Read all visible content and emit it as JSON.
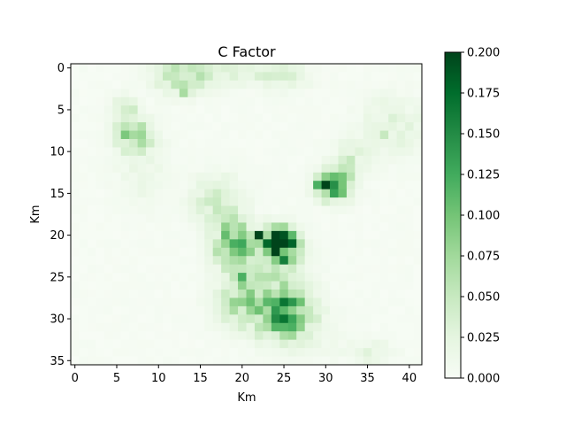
{
  "chart_data": {
    "type": "heatmap",
    "title": "C Factor",
    "xlabel": "Km",
    "ylabel": "Km",
    "grid_cols": 42,
    "grid_rows": 36,
    "xticks": [
      0,
      5,
      10,
      15,
      20,
      25,
      30,
      35,
      40
    ],
    "yticks": [
      0,
      5,
      10,
      15,
      20,
      25,
      30,
      35
    ],
    "xlim": [
      -0.5,
      41.5
    ],
    "ylim": [
      35.5,
      -0.5
    ],
    "colormap": "Greens",
    "color_low": "#f7fcf5",
    "color_high": "#00441b",
    "colorbar": {
      "min": 0.0,
      "max": 0.2,
      "ticks": [
        "0.000",
        "0.025",
        "0.050",
        "0.075",
        "0.100",
        "0.125",
        "0.150",
        "0.175",
        "0.200"
      ]
    },
    "background_value": 0.004,
    "clusters": [
      {
        "x": 13,
        "y": 1,
        "sx": 2.2,
        "sy": 1.4,
        "peak": 0.06
      },
      {
        "x": 20,
        "y": 0.5,
        "sx": 2.5,
        "sy": 1.0,
        "peak": 0.03
      },
      {
        "x": 25,
        "y": 1,
        "sx": 2.0,
        "sy": 1.2,
        "peak": 0.025
      },
      {
        "x": 7,
        "y": 8,
        "sx": 1.4,
        "sy": 1.3,
        "peak": 0.08
      },
      {
        "x": 6,
        "y": 5,
        "sx": 1.0,
        "sy": 1.0,
        "peak": 0.04
      },
      {
        "x": 38,
        "y": 7,
        "sx": 2.5,
        "sy": 2.5,
        "peak": 0.025
      },
      {
        "x": 31,
        "y": 14,
        "sx": 1.4,
        "sy": 1.2,
        "peak": 0.13
      },
      {
        "x": 33,
        "y": 11,
        "sx": 1.5,
        "sy": 1.5,
        "peak": 0.03
      },
      {
        "x": 17,
        "y": 16,
        "sx": 2.0,
        "sy": 2.0,
        "peak": 0.04
      },
      {
        "x": 19,
        "y": 21,
        "sx": 1.6,
        "sy": 2.0,
        "peak": 0.09
      },
      {
        "x": 24.5,
        "y": 21,
        "sx": 1.4,
        "sy": 1.3,
        "peak": 0.19
      },
      {
        "x": 23,
        "y": 24,
        "sx": 3.0,
        "sy": 2.5,
        "peak": 0.04
      },
      {
        "x": 20,
        "y": 28,
        "sx": 2.0,
        "sy": 2.0,
        "peak": 0.06
      },
      {
        "x": 25,
        "y": 29,
        "sx": 2.0,
        "sy": 1.8,
        "peak": 0.11
      },
      {
        "x": 26,
        "y": 31,
        "sx": 3.0,
        "sy": 2.0,
        "peak": 0.03
      },
      {
        "x": 35,
        "y": 34,
        "sx": 2.0,
        "sy": 1.0,
        "peak": 0.02
      },
      {
        "x": 8,
        "y": 12,
        "sx": 2.0,
        "sy": 3.0,
        "peak": 0.015
      }
    ],
    "hotspots": [
      {
        "x": 22,
        "y": 20,
        "value": 0.2
      },
      {
        "x": 24,
        "y": 20,
        "value": 0.2
      },
      {
        "x": 25,
        "y": 20,
        "value": 0.19
      },
      {
        "x": 24,
        "y": 21,
        "value": 0.2
      },
      {
        "x": 25,
        "y": 21,
        "value": 0.2
      },
      {
        "x": 26,
        "y": 21,
        "value": 0.18
      },
      {
        "x": 23,
        "y": 21,
        "value": 0.13
      },
      {
        "x": 25,
        "y": 23,
        "value": 0.16
      },
      {
        "x": 30,
        "y": 14,
        "value": 0.2
      },
      {
        "x": 29,
        "y": 14,
        "value": 0.12
      },
      {
        "x": 31,
        "y": 14,
        "value": 0.12
      },
      {
        "x": 24,
        "y": 29,
        "value": 0.14
      },
      {
        "x": 24,
        "y": 30,
        "value": 0.15
      },
      {
        "x": 26,
        "y": 30,
        "value": 0.13
      },
      {
        "x": 20,
        "y": 25,
        "value": 0.12
      },
      {
        "x": 6,
        "y": 8,
        "value": 0.09
      },
      {
        "x": 18,
        "y": 20,
        "value": 0.09
      },
      {
        "x": 13,
        "y": 3,
        "value": 0.07
      },
      {
        "x": 37,
        "y": 8,
        "value": 0.05
      }
    ]
  }
}
